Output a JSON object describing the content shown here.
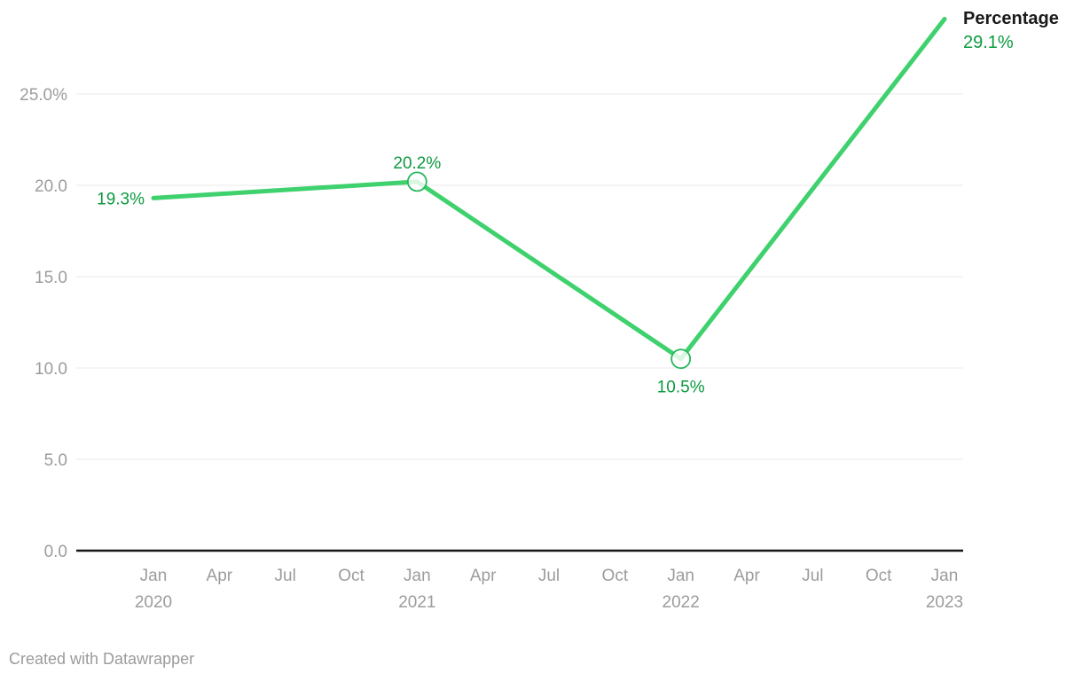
{
  "legend": {
    "series_label": "Percentage",
    "value_label": "29.1%"
  },
  "footer": {
    "credit": "Created with Datawrapper"
  },
  "colors": {
    "line_green": "#3ed16d",
    "label_green": "#0d9a40",
    "marker_stroke_green": "#28b65c",
    "tick_gray": "#9c9c9c",
    "gridline_gray": "#e9e9e9",
    "axis_black": "#161616",
    "legend_black": "#1a1a1a",
    "credit_gray": "#9b9b9b"
  },
  "chart_data": {
    "type": "line",
    "title": "",
    "xlabel": "",
    "ylabel": "",
    "y_range": [
      0,
      30.2
    ],
    "grid": "horizontal",
    "legend_position": "top-right",
    "x_ticks": [
      {
        "month": "Jan",
        "year": "2020"
      },
      {
        "month": "Apr",
        "year": ""
      },
      {
        "month": "Jul",
        "year": ""
      },
      {
        "month": "Oct",
        "year": ""
      },
      {
        "month": "Jan",
        "year": "2021"
      },
      {
        "month": "Apr",
        "year": ""
      },
      {
        "month": "Jul",
        "year": ""
      },
      {
        "month": "Oct",
        "year": ""
      },
      {
        "month": "Jan",
        "year": "2022"
      },
      {
        "month": "Apr",
        "year": ""
      },
      {
        "month": "Jul",
        "year": ""
      },
      {
        "month": "Oct",
        "year": ""
      },
      {
        "month": "Jan",
        "year": "2023"
      }
    ],
    "y_ticks": [
      {
        "value": 0,
        "label": "0.0"
      },
      {
        "value": 5,
        "label": "5.0"
      },
      {
        "value": 10,
        "label": "10.0"
      },
      {
        "value": 15,
        "label": "15.0"
      },
      {
        "value": 20,
        "label": "20.0"
      },
      {
        "value": 25,
        "label": "25.0%"
      }
    ],
    "series": [
      {
        "name": "Percentage",
        "line_color": "#3ed16d",
        "label_color": "#0d9a40",
        "marker_stroke": "#28b65c",
        "points": [
          {
            "x": "Jan 2020",
            "tick_index": 0,
            "value": 19.3,
            "label": "19.3%",
            "label_position": "left",
            "marker": false
          },
          {
            "x": "Jan 2021",
            "tick_index": 4,
            "value": 20.2,
            "label": "20.2%",
            "label_position": "top",
            "marker": true
          },
          {
            "x": "Jan 2022",
            "tick_index": 8,
            "value": 10.5,
            "label": "10.5%",
            "label_position": "bottom",
            "marker": true
          },
          {
            "x": "Jan 2023",
            "tick_index": 12,
            "value": 29.1,
            "label": "29.1%",
            "label_position": "legend",
            "marker": false
          }
        ]
      }
    ]
  }
}
